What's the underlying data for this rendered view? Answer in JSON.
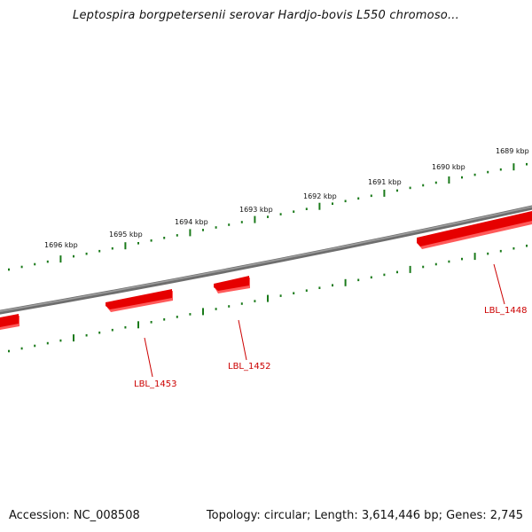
{
  "header": {
    "title": "Leptospira borgpetersenii serovar Hardjo-bovis L550 chromoso..."
  },
  "footer": {
    "accession": "Accession: NC_008508",
    "summary": "Topology: circular; Length: 3,614,446 bp; Genes: 2,745"
  },
  "scale": {
    "labels": [
      "1689 kbp",
      "1690 kbp",
      "1691 kbp",
      "1692 kbp",
      "1693 kbp",
      "1694 kbp",
      "1695 kbp",
      "1696 kbp"
    ]
  },
  "genes": [
    {
      "label": "LBL_1448",
      "strand": "minus"
    },
    {
      "label": "LBL_1452",
      "strand": "minus"
    },
    {
      "label": "LBL_1453",
      "strand": "minus"
    }
  ],
  "colors": {
    "backbone": "#808080",
    "gene": "#e60000",
    "gene_light": "#ff5a5a",
    "tick": "#1a7a1a",
    "gene_label": "#cc0000"
  }
}
